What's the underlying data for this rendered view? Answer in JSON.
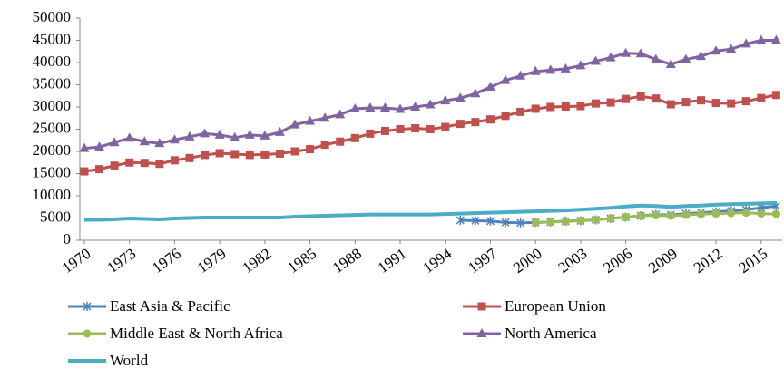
{
  "chart_data": {
    "type": "line",
    "x": [
      1970,
      1971,
      1972,
      1973,
      1974,
      1975,
      1976,
      1977,
      1978,
      1979,
      1980,
      1981,
      1982,
      1983,
      1984,
      1985,
      1986,
      1987,
      1988,
      1989,
      1990,
      1991,
      1992,
      1993,
      1994,
      1995,
      1996,
      1997,
      1998,
      1999,
      2000,
      2001,
      2002,
      2003,
      2004,
      2005,
      2006,
      2007,
      2008,
      2009,
      2010,
      2011,
      2012,
      2013,
      2014,
      2015,
      2016
    ],
    "xlim": [
      1969.7,
      2016.4
    ],
    "xticks": [
      1970,
      1973,
      1976,
      1979,
      1982,
      1985,
      1988,
      1991,
      1994,
      1997,
      2000,
      2003,
      2006,
      2009,
      2012,
      2015
    ],
    "ylim": [
      0,
      50000
    ],
    "yticks": [
      0,
      5000,
      10000,
      15000,
      20000,
      25000,
      30000,
      35000,
      40000,
      45000,
      50000
    ],
    "grid": false,
    "legend": "bottom",
    "series": [
      {
        "name": "East Asia & Pacific",
        "color": "#4f81bd",
        "marker": "star",
        "values": [
          null,
          null,
          null,
          null,
          null,
          null,
          null,
          null,
          null,
          null,
          null,
          null,
          null,
          null,
          null,
          null,
          null,
          null,
          null,
          null,
          null,
          null,
          null,
          null,
          null,
          4500,
          4400,
          4300,
          4000,
          3900,
          4000,
          4100,
          4300,
          4400,
          4600,
          4900,
          5200,
          5500,
          5800,
          5700,
          6000,
          6200,
          6400,
          6600,
          6900,
          7300,
          7700
        ]
      },
      {
        "name": "European Union",
        "color": "#c0504d",
        "marker": "square",
        "values": [
          15500,
          16000,
          16800,
          17500,
          17400,
          17200,
          18000,
          18500,
          19200,
          19600,
          19400,
          19200,
          19300,
          19500,
          20000,
          20500,
          21500,
          22200,
          23000,
          24000,
          24600,
          25000,
          25200,
          25000,
          25500,
          26200,
          26600,
          27200,
          28000,
          28900,
          29600,
          30000,
          30100,
          30200,
          30800,
          31000,
          31800,
          32400,
          31900,
          30600,
          31100,
          31500,
          30900,
          30800,
          31300,
          32000,
          32700
        ]
      },
      {
        "name": "Middle East & North Africa",
        "color": "#9bbb59",
        "marker": "circle",
        "values": [
          null,
          null,
          null,
          null,
          null,
          null,
          null,
          null,
          null,
          null,
          null,
          null,
          null,
          null,
          null,
          null,
          null,
          null,
          null,
          null,
          null,
          null,
          null,
          null,
          null,
          null,
          null,
          null,
          null,
          null,
          4000,
          4100,
          4200,
          4400,
          4600,
          4900,
          5200,
          5500,
          5600,
          5500,
          5700,
          5900,
          6000,
          6100,
          6200,
          6000,
          5900
        ]
      },
      {
        "name": "North America",
        "color": "#8064a2",
        "marker": "triangle",
        "values": [
          20700,
          21000,
          22000,
          23000,
          22200,
          21800,
          22600,
          23300,
          24000,
          23700,
          23100,
          23700,
          23500,
          24300,
          26000,
          26800,
          27500,
          28300,
          29600,
          29800,
          29800,
          29500,
          30000,
          30500,
          31400,
          32000,
          33000,
          34500,
          36000,
          37000,
          38000,
          38300,
          38600,
          39300,
          40300,
          41100,
          42100,
          42000,
          40700,
          39600,
          40700,
          41400,
          42600,
          43000,
          44200,
          45000,
          45000
        ]
      },
      {
        "name": "World",
        "color": "#4bacc6",
        "marker": "none",
        "values": [
          4600,
          4600,
          4700,
          4900,
          4800,
          4700,
          4900,
          5000,
          5100,
          5100,
          5100,
          5100,
          5100,
          5100,
          5300,
          5400,
          5500,
          5600,
          5700,
          5800,
          5800,
          5800,
          5800,
          5800,
          5900,
          6000,
          6100,
          6200,
          6300,
          6400,
          6500,
          6600,
          6700,
          6900,
          7100,
          7300,
          7600,
          7800,
          7700,
          7500,
          7700,
          7800,
          8000,
          8100,
          8200,
          8300,
          8400
        ]
      }
    ]
  }
}
